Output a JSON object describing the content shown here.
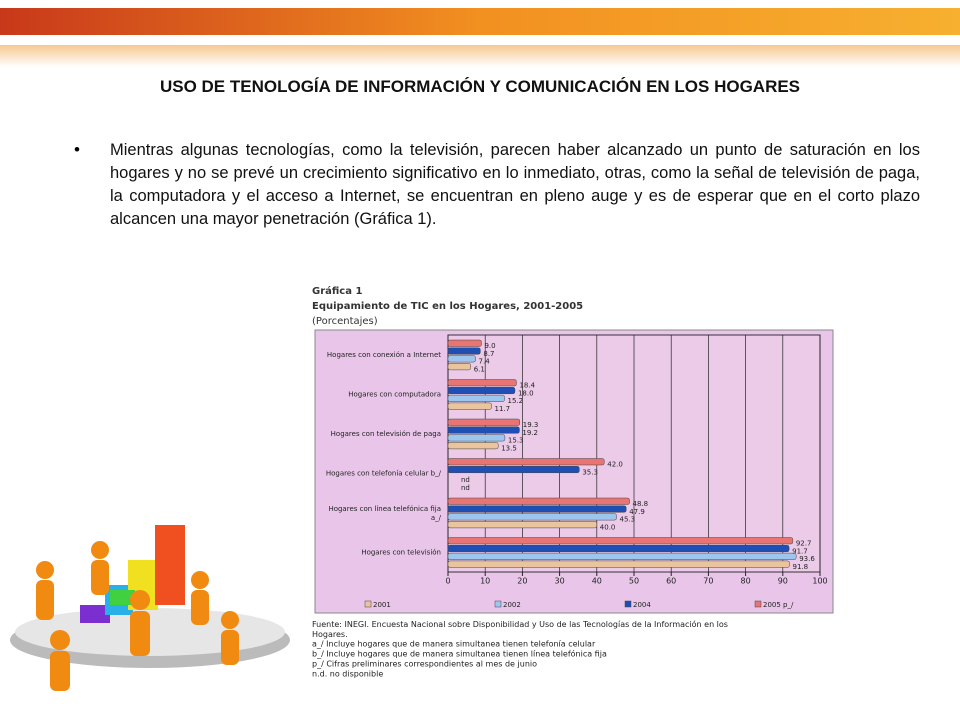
{
  "slide": {
    "title": "USO DE TENOLOGÍA DE INFORMACIÓN Y COMUNICACIÓN EN LOS HOGARES",
    "bullet": "Mientras algunas tecnologías, como la televisión, parecen haber alcanzado un punto de saturación en los hogares y no se prevé un crecimiento significativo en lo inmediato, otras, como la señal de televisión de paga, la computadora y el acceso a Internet, se encuentran en pleno auge y es de esperar que en el corto plazo alcancen una mayor penetración (Gráfica 1)."
  },
  "chart_data": {
    "type": "hbar",
    "label": "Gráfica 1",
    "title": "Equipamiento de TIC en los Hogares, 2001-2005",
    "subtitle": "(Porcentajes)",
    "categories": [
      "Hogares con conexión a Internet",
      "Hogares con computadora",
      "Hogares con televisión de paga",
      "Hogares con telefonía celular b_/",
      "Hogares con línea telefónica fija a_/",
      "Hogares con televisión"
    ],
    "series": [
      {
        "name": "2001",
        "color": "#e9c49c",
        "values": [
          6.1,
          11.7,
          13.5,
          null,
          40.0,
          91.8
        ],
        "value_labels": [
          "6.1",
          "11.7",
          "13.5",
          "nd",
          "40.0",
          "91.8"
        ]
      },
      {
        "name": "2002",
        "color": "#9cc6ee",
        "values": [
          7.4,
          15.2,
          15.3,
          null,
          45.3,
          93.6
        ],
        "value_labels": [
          "7.4",
          "15.2",
          "15.3",
          "nd",
          "45.3",
          "93.6"
        ]
      },
      {
        "name": "2004",
        "color": "#1f4fb4",
        "values": [
          8.7,
          18.0,
          19.2,
          35.3,
          47.9,
          91.7
        ],
        "value_labels": [
          "8.7",
          "18.0",
          "19.2",
          "35.3",
          "47.9",
          "91.7"
        ]
      },
      {
        "name": "2005 p_/",
        "color": "#e87474",
        "values": [
          9.0,
          18.4,
          19.3,
          42.0,
          48.8,
          92.7
        ],
        "value_labels": [
          "9.0",
          "18.4",
          "19.3",
          "42.0",
          "48.8",
          "92.7"
        ]
      }
    ],
    "xlim": [
      0,
      100
    ],
    "xticks": [
      0,
      10,
      20,
      30,
      40,
      50,
      60,
      70,
      80,
      90,
      100
    ],
    "grid": true,
    "notes": [
      "Fuente: INEGI. Encuesta Nacional sobre Disponibilidad y Uso de las Tecnologías de la Información en los Hogares.",
      "a_/ Incluye hogares que de manera simultanea tienen telefonía celular",
      "b_/ Incluye hogares que de manera simultanea tienen línea telefónica fija",
      "p_/ Cifras preliminares correspondientes al mes de junio",
      "n.d. no disponible"
    ]
  }
}
